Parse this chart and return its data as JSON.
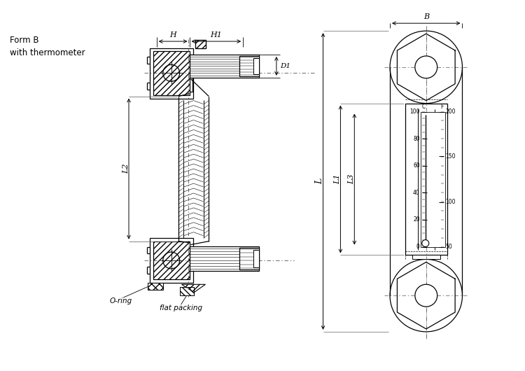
{
  "bg_color": "#ffffff",
  "line_color": "#000000",
  "fig_width": 7.5,
  "fig_height": 5.3,
  "text_form_b": "Form B\nwith thermometer",
  "label_H": "H",
  "label_H1": "H1",
  "label_D1": "D1",
  "label_L2": "L2",
  "label_B": "B",
  "label_L": "L",
  "label_L1": "L1",
  "label_L3": "L3",
  "label_oring": "O-ring",
  "label_flatpacking": "flat packing",
  "scale_C": [
    [
      "100",
      0.0
    ],
    [
      "80",
      0.2
    ],
    [
      "60",
      0.4
    ],
    [
      "40",
      0.6
    ],
    [
      "20",
      0.8
    ],
    [
      "0",
      1.0
    ]
  ],
  "scale_F": [
    [
      "200",
      0.0
    ],
    [
      "150",
      0.33
    ],
    [
      "100",
      0.67
    ],
    [
      "50",
      1.0
    ]
  ]
}
